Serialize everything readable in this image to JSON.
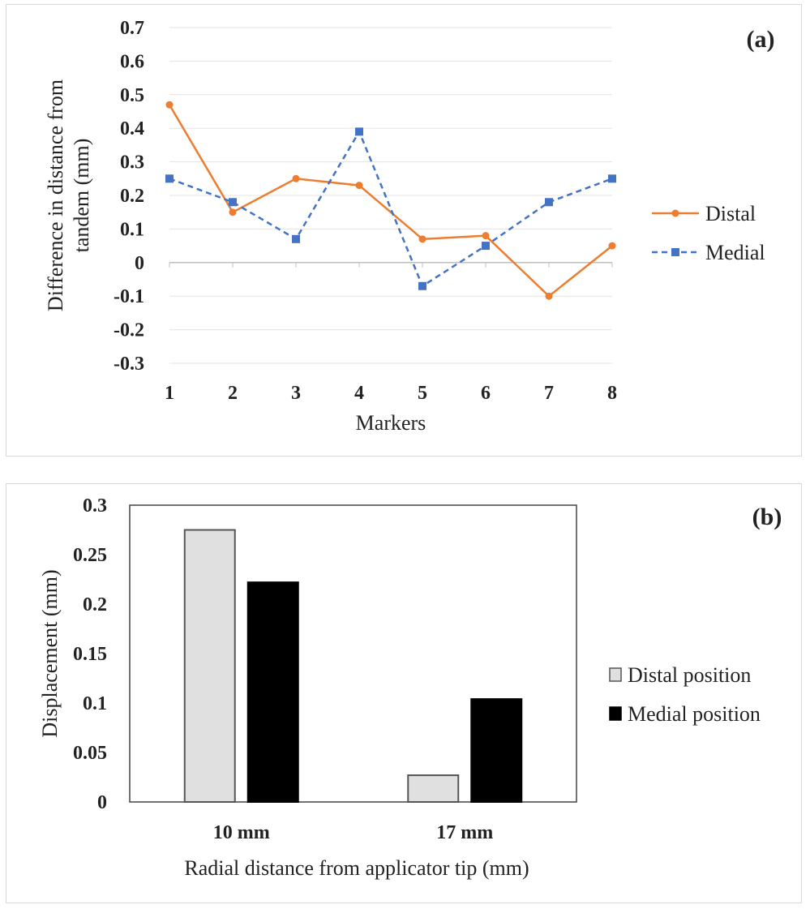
{
  "chart_data": [
    {
      "type": "line",
      "panel_label": "(a)",
      "xlabel": "Markers",
      "ylabel": "Difference in distance from tandem (mm)",
      "ylabel_lines": [
        "Difference in distance from",
        "tandem (mm)"
      ],
      "categories": [
        "1",
        "2",
        "3",
        "4",
        "5",
        "6",
        "7",
        "8"
      ],
      "ylim": [
        -0.3,
        0.7
      ],
      "yticks": [
        0.7,
        0.6,
        0.5,
        0.4,
        0.3,
        0.2,
        0.1,
        0,
        -0.1,
        -0.2,
        -0.3
      ],
      "ytick_labels": [
        "0.7",
        "0.6",
        "0.5",
        "0.4",
        "0.3",
        "0.2",
        "0.1",
        "0",
        "-0.1",
        "-0.2",
        "-0.3"
      ],
      "grid": true,
      "legend_position": "right",
      "series": [
        {
          "name": "Distal",
          "color": "#ed7d31",
          "line_style": "solid",
          "marker": "circle",
          "values": [
            0.47,
            0.15,
            0.25,
            0.23,
            0.07,
            0.08,
            -0.1,
            0.05
          ]
        },
        {
          "name": "Medial",
          "color": "#4472c4",
          "line_style": "dashed",
          "marker": "square",
          "values": [
            0.25,
            0.18,
            0.07,
            0.39,
            -0.07,
            0.05,
            0.18,
            0.25
          ]
        }
      ]
    },
    {
      "type": "bar",
      "panel_label": "(b)",
      "xlabel": "Radial distance from applicator tip (mm)",
      "ylabel": "Displacement (mm)",
      "categories": [
        "10 mm",
        "17 mm"
      ],
      "ylim": [
        0,
        0.3
      ],
      "yticks": [
        0.3,
        0.25,
        0.2,
        0.15,
        0.1,
        0.05,
        0
      ],
      "ytick_labels": [
        "0.3",
        "0.25",
        "0.2",
        "0.15",
        "0.1",
        "0.05",
        "0"
      ],
      "grid": false,
      "legend_position": "right",
      "series": [
        {
          "name": "Distal position",
          "color": "#e0e0e0",
          "values": [
            0.275,
            0.027
          ]
        },
        {
          "name": "Medial position",
          "color": "#000000",
          "values": [
            0.222,
            0.104
          ]
        }
      ]
    }
  ]
}
